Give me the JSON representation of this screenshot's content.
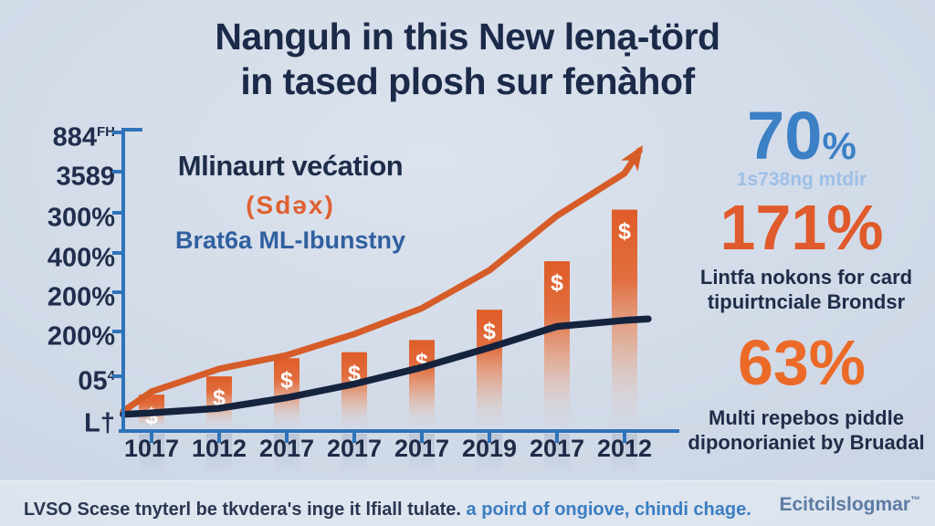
{
  "title": {
    "line1": "Nanguh in this New lenạ-törd",
    "line2": "in tased plosh sur fenàhof"
  },
  "legend": {
    "line1": "Mlinaurt većation",
    "line2": "(Sdəx)",
    "line3": "Brat6a ML-Ibunstny"
  },
  "stats": [
    {
      "value": "70",
      "percent": "%",
      "caption_lines": [
        "1s738ng mtdir"
      ]
    },
    {
      "value": "171%",
      "caption_lines": [
        "Lintfa nokons for card",
        "tipuirtnciale Brondsr"
      ]
    },
    {
      "value": "63%",
      "caption_lines": [
        "Multi repebos piddle",
        "diponorianiet by Bruadal"
      ]
    }
  ],
  "footer": {
    "note_dark": "LVSO Scese tnyterl be tkvdera's inge it lfiall tulate.",
    "note_blue": "a poird of ongiove, chindi chage.",
    "brand": "Ecitcilslogmar",
    "brand_sup": "™"
  },
  "colors": {
    "axis": "#2f73b9",
    "bar_orange": "#df5c27",
    "trend_orange": "#d65c28",
    "trend_navy": "#16233e",
    "stat_blue": "#3c80c6",
    "stat_orange": "#e05a2b"
  },
  "chart_data": {
    "type": "bar",
    "note": "combo bar + two trend lines; values estimated in relative units 0-100 (axis labels are unreadable gibberish)",
    "categories": [
      "1017",
      "1012",
      "2017",
      "2017",
      "2017",
      "2019",
      "2017",
      "2012"
    ],
    "y_axis_labels": [
      {
        "text": "884",
        "sup": "FH"
      },
      {
        "text": "3589",
        "sup": ""
      },
      {
        "text": "300%",
        "sup": ""
      },
      {
        "text": "400%",
        "sup": ""
      },
      {
        "text": "200%",
        "sup": ""
      },
      {
        "text": "200%",
        "sup": ""
      },
      {
        "text": "05",
        "sup": "4"
      },
      {
        "text": "L†",
        "sup": ""
      }
    ],
    "bar_series": {
      "name": "Mlinaurt većation (Sdəx)",
      "marker": "$",
      "values": [
        12,
        18,
        24,
        26,
        30,
        40,
        56,
        73
      ]
    },
    "line_series": [
      {
        "name": "growth-trend-line",
        "color": "#d65c28",
        "width": 7,
        "arrow": true,
        "points": [
          [
            -0.42,
            6.5
          ],
          [
            0,
            13
          ],
          [
            1,
            20.5
          ],
          [
            2,
            25
          ],
          [
            3,
            32
          ],
          [
            4,
            40.5
          ],
          [
            5,
            53
          ],
          [
            6,
            71
          ],
          [
            7,
            85
          ],
          [
            7.22,
            92.5
          ]
        ]
      },
      {
        "name": "baseline-trend-line",
        "color": "#16233e",
        "width": 7.5,
        "arrow": false,
        "points": [
          [
            -0.42,
            5.5
          ],
          [
            0,
            6
          ],
          [
            1,
            7.5
          ],
          [
            2,
            11
          ],
          [
            3,
            15.5
          ],
          [
            4,
            21
          ],
          [
            5,
            27.5
          ],
          [
            6,
            34.5
          ],
          [
            7,
            36.5
          ],
          [
            7.35,
            37
          ]
        ]
      }
    ],
    "ylim": [
      0,
      100
    ],
    "grid": false,
    "legend_position": "upper-left"
  }
}
